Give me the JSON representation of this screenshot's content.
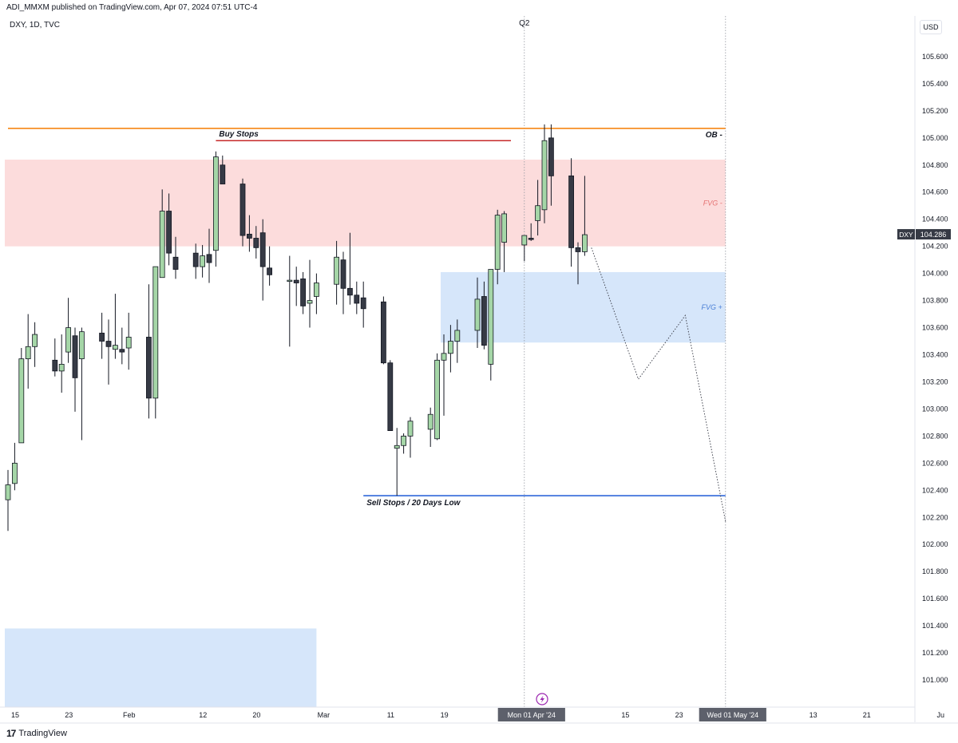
{
  "header": {
    "published": "ADI_MMXM published on TradingView.com, Apr 07, 2024 07:51 UTC-4"
  },
  "symbol_label": "DXY, 1D, TVC",
  "currency_button": "USD",
  "footer": {
    "brand_glyph": "17",
    "brand": "TradingView"
  },
  "colors": {
    "bull_body": "#a5d6a7",
    "bear_body": "#363a45",
    "wick": "#131722",
    "ob_line": "#f57c00",
    "buy_stops_line": "#c62828",
    "sell_stops_line": "#1e5bd6",
    "fvg_minus": "#fcdcdc",
    "fvg_plus": "#d6e6fa",
    "fvg_minus_text": "#e57373",
    "fvg_plus_text": "#4a7fd6"
  },
  "chart_data": {
    "type": "candlestick",
    "title": "",
    "symbol": "DXY",
    "timeframe": "1D",
    "source": "TVC",
    "yaxis": {
      "min": 100.8,
      "max": 105.9,
      "ticks": [
        "105.600",
        "105.400",
        "105.200",
        "105.000",
        "104.800",
        "104.600",
        "104.400",
        "104.200",
        "104.000",
        "103.800",
        "103.600",
        "103.400",
        "103.200",
        "103.000",
        "102.800",
        "102.600",
        "102.400",
        "102.200",
        "102.000",
        "101.800",
        "101.600",
        "101.400",
        "101.200",
        "101.000"
      ],
      "last_price": "104.286",
      "last_price_label": "DXY"
    },
    "xaxis": {
      "ticks": [
        {
          "label": "15",
          "day": 0
        },
        {
          "label": "23",
          "day": 8
        },
        {
          "label": "Feb",
          "day": 17
        },
        {
          "label": "12",
          "day": 28
        },
        {
          "label": "20",
          "day": 36
        },
        {
          "label": "Mar",
          "day": 46
        },
        {
          "label": "11",
          "day": 56
        },
        {
          "label": "19",
          "day": 64
        },
        {
          "label": "Mon 01 Apr '24",
          "day": 77,
          "highlight": true
        },
        {
          "label": "15",
          "day": 91
        },
        {
          "label": "23",
          "day": 99
        },
        {
          "label": "Wed 01 May '24",
          "day": 107,
          "highlight": true
        },
        {
          "label": "13",
          "day": 119
        },
        {
          "label": "21",
          "day": 127
        },
        {
          "label": "Ju",
          "day": 138
        }
      ]
    },
    "candles": [
      {
        "date": "2024-01-15",
        "open": 102.33,
        "high": 102.55,
        "low": 102.1,
        "close": 102.44
      },
      {
        "date": "2024-01-16",
        "open": 102.45,
        "high": 102.75,
        "low": 102.4,
        "close": 102.6
      },
      {
        "date": "2024-01-17",
        "open": 102.75,
        "high": 103.45,
        "low": 102.75,
        "close": 103.37
      },
      {
        "date": "2024-01-18",
        "open": 103.37,
        "high": 103.7,
        "low": 103.15,
        "close": 103.46
      },
      {
        "date": "2024-01-19",
        "open": 103.46,
        "high": 103.64,
        "low": 103.31,
        "close": 103.55
      },
      {
        "date": "2024-01-22",
        "open": 103.36,
        "high": 103.52,
        "low": 103.24,
        "close": 103.28
      },
      {
        "date": "2024-01-23",
        "open": 103.28,
        "high": 103.55,
        "low": 103.12,
        "close": 103.33
      },
      {
        "date": "2024-01-24",
        "open": 103.42,
        "high": 103.82,
        "low": 103.34,
        "close": 103.6
      },
      {
        "date": "2024-01-25",
        "open": 103.54,
        "high": 103.6,
        "low": 102.98,
        "close": 103.23
      },
      {
        "date": "2024-01-26",
        "open": 103.37,
        "high": 103.6,
        "low": 102.77,
        "close": 103.57
      },
      {
        "date": "2024-01-29",
        "open": 103.56,
        "high": 103.71,
        "low": 103.37,
        "close": 103.5
      },
      {
        "date": "2024-01-30",
        "open": 103.5,
        "high": 103.66,
        "low": 103.18,
        "close": 103.46
      },
      {
        "date": "2024-01-31",
        "open": 103.44,
        "high": 103.85,
        "low": 103.37,
        "close": 103.47
      },
      {
        "date": "2024-02-01",
        "open": 103.44,
        "high": 103.6,
        "low": 103.33,
        "close": 103.42
      },
      {
        "date": "2024-02-02",
        "open": 103.45,
        "high": 103.71,
        "low": 103.29,
        "close": 103.53
      },
      {
        "date": "2024-02-05",
        "open": 103.53,
        "high": 103.92,
        "low": 102.93,
        "close": 103.08
      },
      {
        "date": "2024-02-06",
        "open": 103.08,
        "high": 104.05,
        "low": 102.93,
        "close": 104.05
      },
      {
        "date": "2024-02-07",
        "open": 103.97,
        "high": 104.62,
        "low": 103.97,
        "close": 104.46
      },
      {
        "date": "2024-02-08",
        "open": 104.46,
        "high": 104.59,
        "low": 104.06,
        "close": 104.15
      },
      {
        "date": "2024-02-09",
        "open": 104.12,
        "high": 104.27,
        "low": 103.96,
        "close": 104.03
      },
      {
        "date": "2024-02-12",
        "open": 104.15,
        "high": 104.22,
        "low": 103.96,
        "close": 104.05
      },
      {
        "date": "2024-02-13",
        "open": 104.05,
        "high": 104.21,
        "low": 103.97,
        "close": 104.13
      },
      {
        "date": "2024-02-14",
        "open": 104.14,
        "high": 104.33,
        "low": 103.93,
        "close": 104.08
      },
      {
        "date": "2024-02-15",
        "open": 104.17,
        "high": 104.9,
        "low": 104.05,
        "close": 104.86
      },
      {
        "date": "2024-02-16",
        "open": 104.8,
        "high": 104.87,
        "low": 104.66,
        "close": 104.66
      },
      {
        "date": "2024-02-19",
        "open": 104.66,
        "high": 104.7,
        "low": 104.2,
        "close": 104.28
      },
      {
        "date": "2024-02-20",
        "open": 104.29,
        "high": 104.43,
        "low": 104.16,
        "close": 104.26
      },
      {
        "date": "2024-02-21",
        "open": 104.26,
        "high": 104.35,
        "low": 104.11,
        "close": 104.19
      },
      {
        "date": "2024-02-22",
        "open": 104.3,
        "high": 104.4,
        "low": 103.8,
        "close": 104.05
      },
      {
        "date": "2024-02-23",
        "open": 104.04,
        "high": 104.2,
        "low": 103.91,
        "close": 103.99
      },
      {
        "date": "2024-02-26",
        "open": 103.95,
        "high": 104.13,
        "low": 103.46,
        "close": 103.95
      },
      {
        "date": "2024-02-27",
        "open": 103.95,
        "high": 104.05,
        "low": 103.76,
        "close": 103.93
      },
      {
        "date": "2024-02-28",
        "open": 103.96,
        "high": 104.01,
        "low": 103.7,
        "close": 103.76
      },
      {
        "date": "2024-02-29",
        "open": 103.78,
        "high": 104.1,
        "low": 103.6,
        "close": 103.8
      },
      {
        "date": "2024-03-01",
        "open": 103.83,
        "high": 104.0,
        "low": 103.7,
        "close": 103.93
      },
      {
        "date": "2024-03-04",
        "open": 103.92,
        "high": 104.24,
        "low": 103.77,
        "close": 104.12
      },
      {
        "date": "2024-03-05",
        "open": 104.1,
        "high": 104.16,
        "low": 103.7,
        "close": 103.89
      },
      {
        "date": "2024-03-06",
        "open": 103.89,
        "high": 104.3,
        "low": 103.77,
        "close": 103.84
      },
      {
        "date": "2024-03-07",
        "open": 103.84,
        "high": 103.94,
        "low": 103.7,
        "close": 103.78
      },
      {
        "date": "2024-03-08",
        "open": 103.82,
        "high": 103.94,
        "low": 103.6,
        "close": 103.74
      },
      {
        "date": "2024-03-11",
        "open": 103.79,
        "high": 103.83,
        "low": 103.33,
        "close": 103.34
      },
      {
        "date": "2024-03-12",
        "open": 103.34,
        "high": 103.36,
        "low": 102.89,
        "close": 102.84
      },
      {
        "date": "2024-03-13",
        "open": 102.71,
        "high": 102.86,
        "low": 102.36,
        "close": 102.73
      },
      {
        "date": "2024-03-14",
        "open": 102.73,
        "high": 102.82,
        "low": 102.67,
        "close": 102.8
      },
      {
        "date": "2024-03-15",
        "open": 102.8,
        "high": 102.94,
        "low": 102.64,
        "close": 102.91
      },
      {
        "date": "2024-03-18",
        "open": 102.85,
        "high": 103.01,
        "low": 102.72,
        "close": 102.96
      },
      {
        "date": "2024-03-19",
        "open": 102.78,
        "high": 103.41,
        "low": 102.77,
        "close": 103.36
      },
      {
        "date": "2024-03-20",
        "open": 103.36,
        "high": 103.55,
        "low": 102.95,
        "close": 103.41
      },
      {
        "date": "2024-03-21",
        "open": 103.41,
        "high": 103.62,
        "low": 103.27,
        "close": 103.5
      },
      {
        "date": "2024-03-22",
        "open": 103.5,
        "high": 103.66,
        "low": 103.34,
        "close": 103.58
      },
      {
        "date": "2024-03-25",
        "open": 103.58,
        "high": 103.97,
        "low": 103.45,
        "close": 103.81
      },
      {
        "date": "2024-03-26",
        "open": 103.83,
        "high": 103.94,
        "low": 103.44,
        "close": 103.47
      },
      {
        "date": "2024-03-27",
        "open": 103.33,
        "high": 104.03,
        "low": 103.21,
        "close": 104.03
      },
      {
        "date": "2024-03-28",
        "open": 104.03,
        "high": 104.47,
        "low": 103.92,
        "close": 104.43
      },
      {
        "date": "2024-03-29",
        "open": 104.23,
        "high": 104.46,
        "low": 104.01,
        "close": 104.44
      },
      {
        "date": "2024-04-01",
        "open": 104.21,
        "high": 104.28,
        "low": 104.09,
        "close": 104.28
      },
      {
        "date": "2024-04-02",
        "open": 104.26,
        "high": 104.37,
        "low": 104.24,
        "close": 104.25
      },
      {
        "date": "2024-04-03",
        "open": 104.39,
        "high": 104.69,
        "low": 104.28,
        "close": 104.5
      },
      {
        "date": "2024-04-04",
        "open": 104.47,
        "high": 105.1,
        "low": 104.37,
        "close": 104.98
      },
      {
        "date": "2024-04-05",
        "open": 105.0,
        "high": 105.1,
        "low": 104.5,
        "close": 104.72
      },
      {
        "date": "2024-04-08",
        "open": 104.72,
        "high": 104.85,
        "low": 104.05,
        "close": 104.19
      },
      {
        "date": "2024-04-09",
        "open": 104.19,
        "high": 104.23,
        "low": 103.92,
        "close": 104.16
      },
      {
        "date": "2024-04-10",
        "open": 104.16,
        "high": 104.72,
        "low": 104.13,
        "close": 104.286
      }
    ],
    "zones": [
      {
        "name": "FVG -",
        "from": 104.2,
        "to": 104.84,
        "day_start": 0,
        "day_end": 107,
        "color": "#fcdcdc",
        "label_color": "#e57373"
      },
      {
        "name": "FVG +",
        "from": 103.49,
        "to": 104.01,
        "day_start": 65,
        "day_end": 107,
        "color": "#d6e6fa",
        "label_color": "#4a7fd6"
      },
      {
        "name": "",
        "from": 100.8,
        "to": 101.38,
        "day_start": 0,
        "day_end": 46,
        "color": "#d6e6fa"
      }
    ],
    "levels": [
      {
        "name": "OB -",
        "price": 105.07,
        "day_start": 0,
        "day_end": 107,
        "color": "#f57c00",
        "label_side": "right"
      },
      {
        "name": "Buy Stops",
        "price": 104.98,
        "day_start": 31,
        "day_end": 75,
        "color": "#c62828",
        "label_side": "left-above"
      },
      {
        "name": "Sell Stops / 20 Days Low",
        "price": 102.36,
        "day_start": 53,
        "day_end": 107,
        "color": "#1e5bd6",
        "label_side": "left-below"
      }
    ],
    "vlines": [
      {
        "label": "Q2",
        "day": 77
      },
      {
        "label": "",
        "day": 107
      }
    ],
    "projection": [
      {
        "day": 87,
        "price": 104.19
      },
      {
        "day": 94,
        "price": 103.22
      },
      {
        "day": 101,
        "price": 103.69
      },
      {
        "day": 107,
        "price": 102.17
      }
    ]
  }
}
